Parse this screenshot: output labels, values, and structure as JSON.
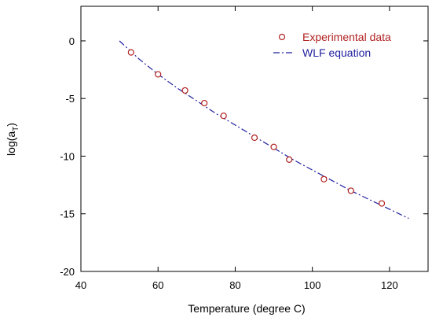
{
  "chart_data": {
    "type": "scatter",
    "title": "",
    "xlabel": "Temperature (degree C)",
    "ylabel_main": "log(a",
    "ylabel_sub": "T",
    "ylabel_close": ")",
    "xlim": [
      40,
      130
    ],
    "ylim": [
      -20,
      3
    ],
    "xticks": [
      40,
      60,
      80,
      100,
      120
    ],
    "yticks": [
      0,
      -5,
      -10,
      -15,
      -20
    ],
    "xtick_labels": [
      "40",
      "60",
      "80",
      "100",
      "120"
    ],
    "ytick_labels": [
      "0",
      "-5",
      "-10",
      "-15",
      "-20"
    ],
    "grid": false,
    "legend_position": "top-right",
    "series": [
      {
        "name": "Experimental data",
        "kind": "markers",
        "color": "#b22222",
        "x": [
          53,
          60,
          67,
          72,
          77,
          85,
          90,
          94,
          103,
          110,
          118
        ],
        "y": [
          -1.0,
          -2.9,
          -4.3,
          -5.4,
          -6.5,
          -8.4,
          -9.2,
          -10.3,
          -12.0,
          -13.0,
          -14.1
        ]
      },
      {
        "name": "WLF equation",
        "kind": "line",
        "color": "#1f1f9f",
        "x": [
          50,
          55,
          60,
          65,
          70,
          75,
          80,
          85,
          90,
          95,
          100,
          105,
          110,
          115,
          120,
          125
        ],
        "y": [
          0.0,
          -1.55,
          -2.9,
          -4.1,
          -5.2,
          -6.3,
          -7.3,
          -8.3,
          -9.3,
          -10.3,
          -11.2,
          -12.1,
          -13.0,
          -13.8,
          -14.6,
          -15.4
        ]
      }
    ]
  }
}
